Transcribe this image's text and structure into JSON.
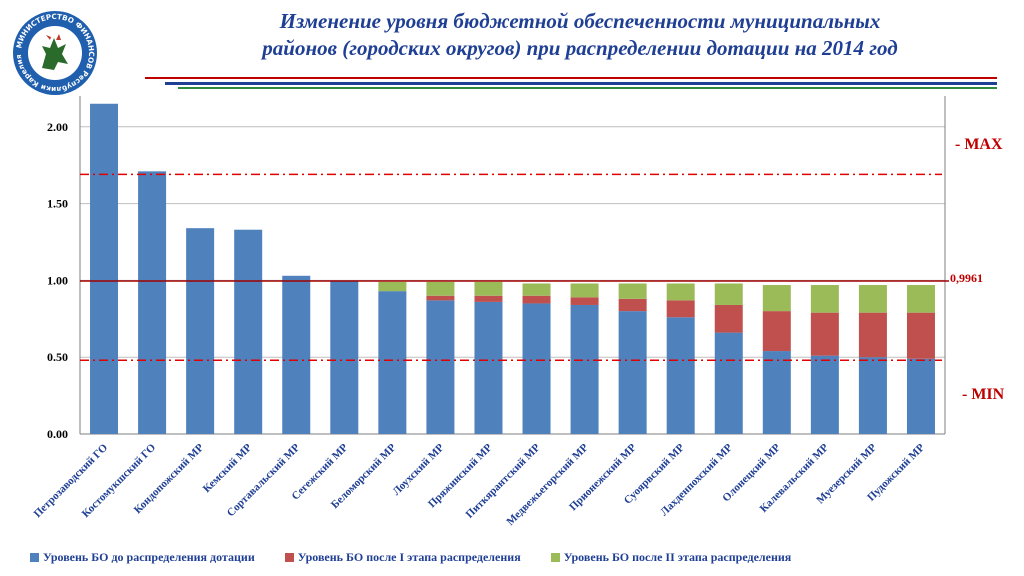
{
  "header": {
    "title_line1": "Изменение уровня бюджетной обеспеченности муниципальных",
    "title_line2": "районов (городских округов) при распределении дотации на 2014 год"
  },
  "logo": {
    "ring_text": "МИНИСТЕРСТВО ФИНАНСОВ Республики Карелия",
    "colors": {
      "ring": "#1f5fae",
      "inner": "#ffffff",
      "emblem": "#2a6a2a",
      "accent": "#c0392b"
    }
  },
  "annotations": {
    "max_label": "- MAX",
    "min_label": "- MIN",
    "threshold_label": "0,9961"
  },
  "colors": {
    "series1": "#4f81bd",
    "series2": "#c0504d",
    "series3": "#9bbb59",
    "ref_line": "#e00000",
    "threshold_line": "#a00000",
    "title": "#1f3f94"
  },
  "chart_data": {
    "type": "bar",
    "stacked": true,
    "categories": [
      "Петрозаводский ГО",
      "Костомукшский ГО",
      "Кондопожский МР",
      "Кемский МР",
      "Сортавальский МР",
      "Сегежский МР",
      "Беломорский МР",
      "Лоухский МР",
      "Пряжинский МР",
      "Питкярантский МР",
      "Медвежьегорский МР",
      "Прионежский МР",
      "Суоярвский МР",
      "Лахденпохский МР",
      "Олонецкий МР",
      "Калевальский МР",
      "Муезерский МР",
      "Пудожский МР"
    ],
    "series": [
      {
        "name": "Уровень БО до распределения дотации",
        "color": "#4f81bd",
        "values": [
          2.15,
          1.71,
          1.34,
          1.33,
          1.03,
          1.0,
          0.93,
          0.87,
          0.86,
          0.85,
          0.84,
          0.8,
          0.76,
          0.66,
          0.54,
          0.51,
          0.5,
          0.49
        ]
      },
      {
        "name": "Уровень БО после I этапа распределения",
        "color": "#c0504d",
        "values": [
          0,
          0,
          0,
          0,
          0,
          0,
          0,
          0.03,
          0.04,
          0.05,
          0.05,
          0.08,
          0.11,
          0.18,
          0.26,
          0.28,
          0.29,
          0.3
        ]
      },
      {
        "name": "Уровень БО после II этапа распределения",
        "color": "#9bbb59",
        "values": [
          0,
          0,
          0,
          0,
          0,
          0,
          0.06,
          0.09,
          0.09,
          0.08,
          0.09,
          0.1,
          0.11,
          0.14,
          0.17,
          0.18,
          0.18,
          0.18
        ]
      }
    ],
    "ylim": [
      0,
      2.2
    ],
    "yticks": [
      "0.00",
      "0.50",
      "1.00",
      "1.50",
      "2.00"
    ],
    "ytick_values": [
      0,
      0.5,
      1.0,
      1.5,
      2.0
    ],
    "ref_lines": {
      "max": 1.69,
      "min": 0.48,
      "threshold": 0.9961
    },
    "grid": true,
    "legend_position": "bottom"
  }
}
